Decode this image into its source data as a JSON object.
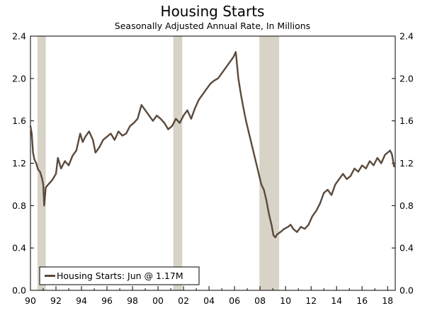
{
  "chart_data": {
    "type": "line",
    "title": "Housing Starts",
    "subtitle": "Seasonally Adjusted Annual Rate, In Millions",
    "xlabel": "",
    "ylabel": "",
    "xlim": [
      1990.0,
      2018.6
    ],
    "ylim": [
      0.0,
      2.4
    ],
    "x_ticks": [
      1990,
      1992,
      1994,
      1996,
      1998,
      2000,
      2002,
      2004,
      2006,
      2008,
      2010,
      2012,
      2014,
      2016,
      2018
    ],
    "x_tick_labels": [
      "90",
      "92",
      "94",
      "96",
      "98",
      "00",
      "02",
      "04",
      "06",
      "08",
      "10",
      "12",
      "14",
      "16",
      "18"
    ],
    "y_ticks": [
      0.0,
      0.4,
      0.8,
      1.2,
      1.6,
      2.0,
      2.4
    ],
    "y_tick_labels": [
      "0.0",
      "0.4",
      "0.8",
      "1.2",
      "1.6",
      "2.0",
      "2.4"
    ],
    "grid": false,
    "recessions": [
      {
        "start": 1990.55,
        "end": 1991.2
      },
      {
        "start": 2001.2,
        "end": 2001.9
      },
      {
        "start": 2007.95,
        "end": 2009.5
      }
    ],
    "legend": {
      "label": "Housing Starts: Jun @ 1.17M",
      "position": "bottom-left"
    },
    "series": [
      {
        "name": "Housing Starts",
        "color": "#5a4a3c",
        "x": [
          1990.0,
          1990.1,
          1990.2,
          1990.3,
          1990.45,
          1990.6,
          1990.75,
          1990.9,
          1991.0,
          1991.08,
          1991.2,
          1991.4,
          1991.7,
          1992.0,
          1992.15,
          1992.4,
          1992.7,
          1993.0,
          1993.3,
          1993.6,
          1993.9,
          1994.1,
          1994.3,
          1994.6,
          1994.9,
          1995.1,
          1995.4,
          1995.7,
          1996.0,
          1996.3,
          1996.6,
          1996.9,
          1997.2,
          1997.5,
          1997.8,
          1998.1,
          1998.4,
          1998.7,
          1999.0,
          1999.3,
          1999.6,
          1999.9,
          2000.2,
          2000.5,
          2000.8,
          2001.1,
          2001.4,
          2001.7,
          2002.0,
          2002.3,
          2002.6,
          2002.9,
          2003.2,
          2003.5,
          2003.8,
          2004.1,
          2004.4,
          2004.7,
          2005.0,
          2005.3,
          2005.6,
          2005.9,
          2006.1,
          2006.3,
          2006.5,
          2006.7,
          2006.9,
          2007.1,
          2007.3,
          2007.5,
          2007.7,
          2007.9,
          2008.1,
          2008.3,
          2008.5,
          2008.7,
          2008.9,
          2009.05,
          2009.2,
          2009.35,
          2009.6,
          2009.9,
          2010.2,
          2010.4,
          2010.6,
          2010.9,
          2011.2,
          2011.5,
          2011.8,
          2012.1,
          2012.4,
          2012.7,
          2013.0,
          2013.3,
          2013.6,
          2013.9,
          2014.2,
          2014.5,
          2014.8,
          2015.1,
          2015.4,
          2015.7,
          2016.0,
          2016.3,
          2016.6,
          2016.9,
          2017.2,
          2017.5,
          2017.8,
          2018.0,
          2018.2,
          2018.35,
          2018.5
        ],
        "values": [
          1.55,
          1.48,
          1.3,
          1.24,
          1.2,
          1.14,
          1.12,
          1.06,
          1.0,
          0.8,
          0.97,
          1.0,
          1.04,
          1.1,
          1.25,
          1.15,
          1.22,
          1.18,
          1.27,
          1.32,
          1.48,
          1.4,
          1.45,
          1.5,
          1.42,
          1.3,
          1.35,
          1.42,
          1.45,
          1.48,
          1.42,
          1.5,
          1.46,
          1.48,
          1.55,
          1.58,
          1.62,
          1.75,
          1.7,
          1.65,
          1.6,
          1.65,
          1.62,
          1.58,
          1.52,
          1.55,
          1.62,
          1.58,
          1.65,
          1.7,
          1.62,
          1.72,
          1.8,
          1.85,
          1.9,
          1.95,
          1.98,
          2.0,
          2.05,
          2.1,
          2.15,
          2.2,
          2.25,
          2.0,
          1.85,
          1.72,
          1.6,
          1.5,
          1.4,
          1.3,
          1.2,
          1.1,
          1.0,
          0.95,
          0.85,
          0.72,
          0.62,
          0.52,
          0.5,
          0.53,
          0.55,
          0.58,
          0.6,
          0.62,
          0.58,
          0.55,
          0.6,
          0.58,
          0.62,
          0.7,
          0.75,
          0.82,
          0.92,
          0.95,
          0.9,
          1.0,
          1.05,
          1.1,
          1.05,
          1.08,
          1.15,
          1.12,
          1.18,
          1.15,
          1.22,
          1.18,
          1.25,
          1.2,
          1.28,
          1.3,
          1.32,
          1.28,
          1.17
        ]
      }
    ]
  }
}
